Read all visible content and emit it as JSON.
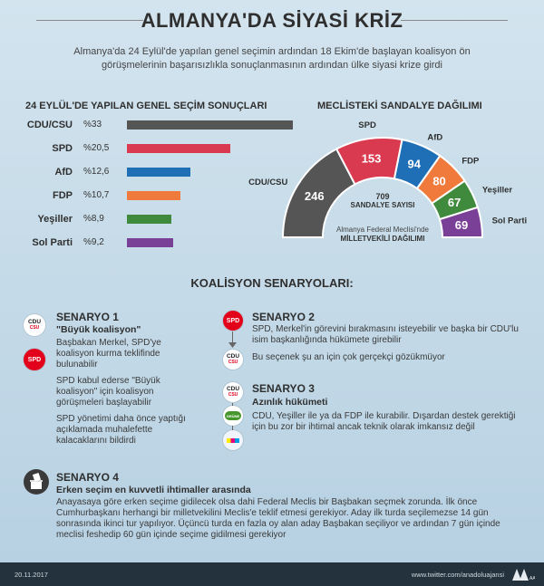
{
  "title": "ALMANYA'DA SİYASİ KRİZ",
  "subtitle": "Almanya'da 24 Eylül'de yapılan genel seçimin ardından 18 Ekim'de başlayan koalisyon ön görüşmelerinin başarısızlıkla sonuçlanmasının ardından ülke siyasi krize girdi",
  "election": {
    "heading": "24 EYLÜL'DE YAPILAN GENEL SEÇİM SONUÇLARI",
    "parties": [
      {
        "name": "CDU/CSU",
        "pct_label": "%33",
        "value": 33,
        "color": "#555555"
      },
      {
        "name": "SPD",
        "pct_label": "%20,5",
        "value": 20.5,
        "color": "#d93a50"
      },
      {
        "name": "AfD",
        "pct_label": "%12,6",
        "value": 12.6,
        "color": "#1e6fb6"
      },
      {
        "name": "FDP",
        "pct_label": "%10,7",
        "value": 10.7,
        "color": "#ef7a3c"
      },
      {
        "name": "Yeşiller",
        "pct_label": "%8,9",
        "value": 8.9,
        "color": "#3f8a3c"
      },
      {
        "name": "Sol Parti",
        "pct_label": "%9,2",
        "value": 9.2,
        "color": "#7a3f96"
      }
    ]
  },
  "parliament": {
    "heading": "MECLİSTEKİ SANDALYE DAĞILIMI",
    "total_number": "709",
    "total_label": "SANDALYE SAYISI",
    "note_line1": "Almanya Federal Meclisi'nde",
    "note_line2": "MİLLETVEKİLİ DAĞILIMI",
    "seats": [
      {
        "name": "CDU/CSU",
        "seats": 246,
        "color": "#555555"
      },
      {
        "name": "SPD",
        "seats": 153,
        "color": "#d93a50"
      },
      {
        "name": "AfD",
        "seats": 94,
        "color": "#1e6fb6"
      },
      {
        "name": "FDP",
        "seats": 80,
        "color": "#ef7a3c"
      },
      {
        "name": "Yeşiller",
        "seats": 67,
        "color": "#3f8a3c"
      },
      {
        "name": "Sol Parti",
        "seats": 69,
        "color": "#7a3f96"
      }
    ]
  },
  "chart_data": [
    {
      "type": "bar",
      "title": "24 EYLÜL'DE YAPILAN GENEL SEÇİM SONUÇLARI",
      "categories": [
        "CDU/CSU",
        "SPD",
        "AfD",
        "FDP",
        "Yeşiller",
        "Sol Parti"
      ],
      "values": [
        33,
        20.5,
        12.6,
        10.7,
        8.9,
        9.2
      ],
      "xlabel": "",
      "ylabel": "%"
    },
    {
      "type": "pie",
      "title": "MECLİSTEKİ SANDALYE DAĞILIMI",
      "categories": [
        "CDU/CSU",
        "SPD",
        "AfD",
        "FDP",
        "Yeşiller",
        "Sol Parti"
      ],
      "values": [
        246,
        153,
        94,
        80,
        67,
        69
      ]
    }
  ],
  "scenarios": {
    "heading": "KOALİSYON SENARYOLARI:",
    "s1": {
      "title": "SENARYO 1",
      "subtitle": "\"Büyük koalisyon\"",
      "p1": "Başbakan Merkel, SPD'ye koalisyon kurma teklifinde bulunabilir",
      "p2": "SPD kabul ederse \"Büyük koalisyon\" için koalisyon görüşmeleri başlayabilir",
      "p3": "SPD yönetimi daha önce yaptığı açıklamada muhalefette kalacaklarını bildirdi"
    },
    "s2": {
      "title": "SENARYO 2",
      "p1": "SPD, Merkel'in görevini bırakmasını isteyebilir ve başka bir CDU'lu isim başkanlığında hükümete girebilir",
      "p2": "Bu seçenek şu an için çok gerçekçi gözükmüyor"
    },
    "s3": {
      "title": "SENARYO 3",
      "subtitle": "Azınlık hükümeti",
      "p1": "CDU, Yeşiller ile ya da FDP ile kurabilir. Dışardan destek gerektiği için bu zor bir ihtimal ancak teknik olarak imkansız değil"
    },
    "s4": {
      "title": "SENARYO 4",
      "subtitle": "Erken seçim en kuvvetli ihtimaller arasında",
      "p1": "Anayasaya göre erken seçime gidilecek olsa dahi Federal Meclis bir Başbakan seçmek zorunda. İlk önce Cumhurbaşkanı herhangi bir milletvekilini Meclis'e teklif etmesi gerekiyor. Aday ilk turda seçilemezse 14 gün sonrasında ikinci tur yapılıyor. Üçüncü turda en fazla oy alan aday Başbakan seçiliyor ve ardından 7 gün içinde meclisi feshedip 60 gün içinde seçime gidilmesi gerekiyor"
    },
    "logos": {
      "cdu": "CDU",
      "csu": "CSU",
      "spd": "SPD",
      "gruene": "GRÜNE"
    }
  },
  "footer": {
    "date": "20.11.2017",
    "twitter": "www.twitter.com/anadoluajansi",
    "agency": "AA"
  }
}
